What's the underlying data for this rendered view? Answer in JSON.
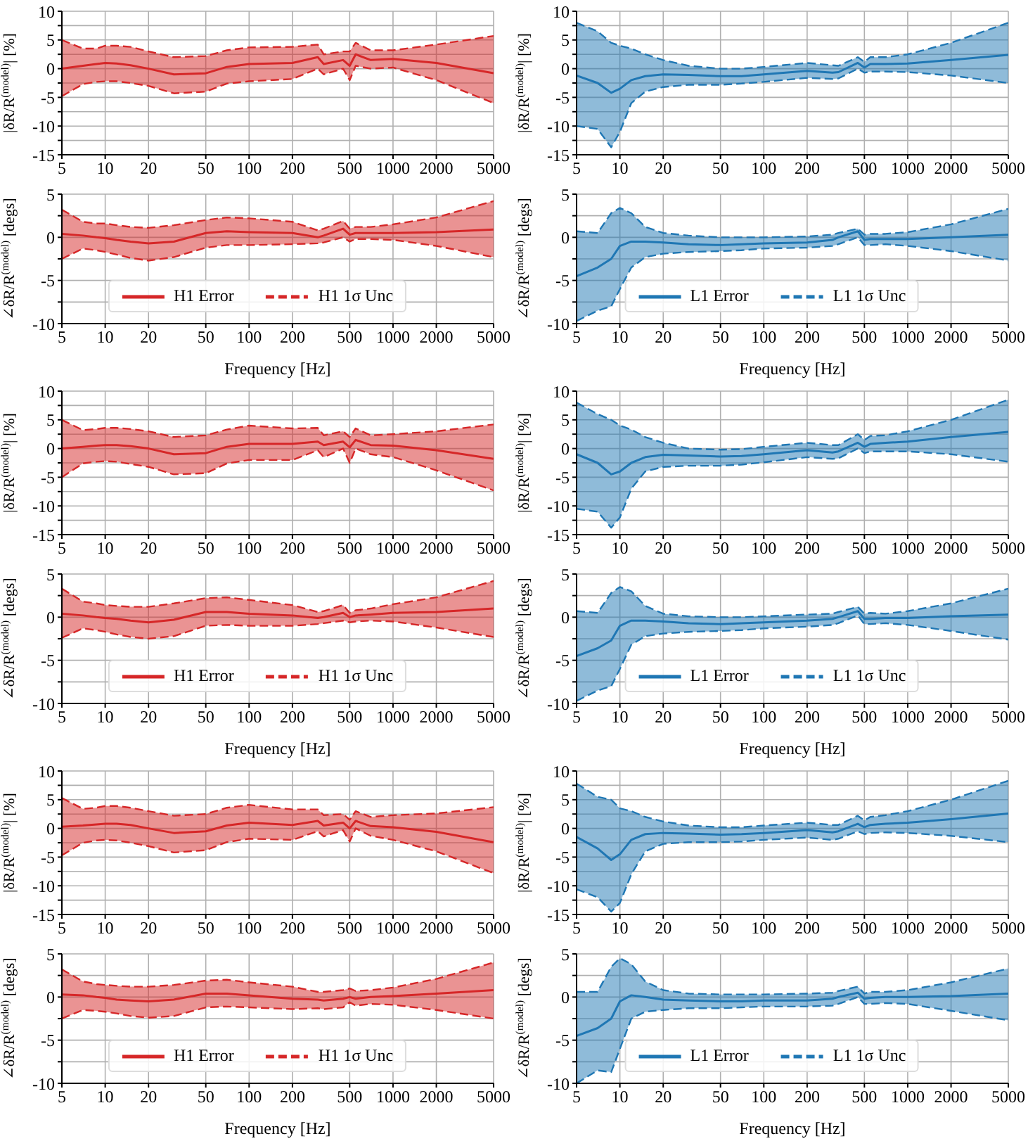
{
  "chart_data": [
    {
      "type": "line",
      "x": [
        5,
        7,
        8.7,
        10,
        12,
        15,
        20,
        30,
        50,
        70,
        100,
        200,
        300,
        330,
        450,
        500,
        550,
        700,
        1000,
        2000,
        5000
      ],
      "log": "x",
      "xlim": [
        5,
        5000
      ],
      "xticks": [
        5,
        10,
        20,
        50,
        100,
        200,
        500,
        1000,
        2000,
        5000
      ],
      "ylim": [
        -15,
        10
      ],
      "yticks": [
        -15,
        {
          "value": -12.5,
          "label": null
        },
        -10,
        {
          "value": -7.5,
          "label": null
        },
        -5,
        {
          "value": -2.5,
          "label": null
        },
        0,
        {
          "value": 2.5,
          "label": null
        },
        5,
        {
          "value": 7.5,
          "label": null
        },
        10
      ],
      "ylabel": "|δR/R$^{(model)}$| [%]",
      "grid": true,
      "series": [
        {
          "color": "#d62728",
          "values": [
            0,
            0.5,
            0.8,
            1,
            0.9,
            0.6,
            0,
            -1,
            -0.8,
            0.3,
            0.8,
            1,
            2,
            0.8,
            1.5,
            0.5,
            2.5,
            1.5,
            1.7,
            1,
            -0.8
          ],
          "upper": [
            5,
            3.5,
            3.5,
            4,
            4,
            3.8,
            3,
            2,
            2.2,
            3.2,
            3.7,
            3.8,
            4.2,
            2.5,
            3,
            3,
            4.5,
            3.2,
            3.2,
            4.2,
            5.7
          ],
          "lower": [
            -4.8,
            -2.7,
            -2.3,
            -2.2,
            -2.2,
            -2.5,
            -3,
            -4.3,
            -4,
            -2.6,
            -2.2,
            -1.8,
            0,
            -1,
            0,
            -2,
            0.5,
            0,
            0.2,
            -2,
            -6
          ]
        },
        {
          "color": "#d62728",
          "line_style": "dashed",
          "values": [
            5,
            3.5,
            3.5,
            4,
            4,
            3.8,
            3,
            2,
            2.2,
            3.2,
            3.7,
            3.8,
            4.2,
            2.5,
            3,
            3,
            4.5,
            3.2,
            3.2,
            4.2,
            5.7
          ]
        },
        {
          "color": "#d62728",
          "line_style": "dashed",
          "values": [
            -4.8,
            -2.7,
            -2.3,
            -2.2,
            -2.2,
            -2.5,
            -3,
            -4.3,
            -4,
            -2.6,
            -2.2,
            -1.8,
            0,
            -1,
            0,
            -2,
            0.5,
            0,
            0.2,
            -2,
            -6
          ]
        }
      ]
    },
    {
      "type": "line",
      "x": [
        5,
        7,
        8.7,
        10,
        12,
        15,
        20,
        30,
        50,
        70,
        100,
        200,
        300,
        330,
        450,
        500,
        550,
        700,
        1000,
        2000,
        5000
      ],
      "log": "x",
      "xlim": [
        5,
        5000
      ],
      "xticks": [
        5,
        10,
        20,
        50,
        100,
        200,
        500,
        1000,
        2000,
        5000
      ],
      "ylim": [
        -15,
        10
      ],
      "yticks": [
        -15,
        {
          "value": -12.5,
          "label": null
        },
        -10,
        {
          "value": -7.5,
          "label": null
        },
        -5,
        {
          "value": -2.5,
          "label": null
        },
        0,
        {
          "value": 2.5,
          "label": null
        },
        5,
        {
          "value": 7.5,
          "label": null
        },
        10
      ],
      "ylabel": "|δR/R$^{(model)}$| [%]",
      "grid": true,
      "series": [
        {
          "color": "#1f77b4",
          "values": [
            -1.2,
            -2.5,
            -4.2,
            -3.5,
            -2,
            -1.3,
            -1,
            -1.1,
            -1.3,
            -1.3,
            -1,
            -0.4,
            -0.7,
            -0.6,
            1,
            0.2,
            0.8,
            0.8,
            0.9,
            1.5,
            2.4
          ],
          "upper": [
            8,
            6.5,
            4.5,
            4,
            3.5,
            2.5,
            1.5,
            0.5,
            0,
            0,
            0.3,
            1,
            0.6,
            0.5,
            2,
            1.2,
            2,
            2,
            2.5,
            4.5,
            8
          ],
          "lower": [
            -10,
            -10.5,
            -13.7,
            -11,
            -6,
            -4,
            -3.2,
            -2.8,
            -2.8,
            -2.6,
            -2.3,
            -1.6,
            -1.8,
            -1.7,
            0,
            -0.7,
            -0.5,
            -0.5,
            -0.6,
            -1.2,
            -2.5
          ]
        },
        {
          "color": "#1f77b4",
          "line_style": "dashed",
          "values": [
            8,
            6.5,
            4.5,
            4,
            3.5,
            2.5,
            1.5,
            0.5,
            0,
            0,
            0.3,
            1,
            0.6,
            0.5,
            2,
            1.2,
            2,
            2,
            2.5,
            4.5,
            8
          ]
        },
        {
          "color": "#1f77b4",
          "line_style": "dashed",
          "values": [
            -10,
            -10.5,
            -13.7,
            -11,
            -6,
            -4,
            -3.2,
            -2.8,
            -2.8,
            -2.6,
            -2.3,
            -1.6,
            -1.8,
            -1.7,
            0,
            -0.7,
            -0.5,
            -0.5,
            -0.6,
            -1.2,
            -2.5
          ]
        }
      ]
    },
    {
      "type": "line",
      "x": [
        5,
        7,
        8.7,
        10,
        12,
        15,
        20,
        30,
        50,
        70,
        100,
        200,
        300,
        330,
        450,
        500,
        550,
        700,
        1000,
        2000,
        5000
      ],
      "log": "x",
      "xlim": [
        5,
        5000
      ],
      "xticks": [
        5,
        10,
        20,
        50,
        100,
        200,
        500,
        1000,
        2000,
        5000
      ],
      "ylim": [
        -10,
        5
      ],
      "yticks": [
        -10,
        {
          "value": -7.5,
          "label": null
        },
        -5,
        {
          "value": -2.5,
          "label": null
        },
        0,
        {
          "value": 2.5,
          "label": null
        },
        5
      ],
      "xlabel": "Frequency [Hz]",
      "ylabel": "∠δR/R$^{(model)}$ [degs]",
      "grid": true,
      "legend": "bottom",
      "series": [
        {
          "name": "H1 Error",
          "color": "#d62728",
          "values": [
            0.4,
            0.2,
            0,
            -0.1,
            -0.3,
            -0.5,
            -0.7,
            -0.5,
            0.5,
            0.7,
            0.6,
            0.5,
            0,
            0.2,
            1,
            0.3,
            0.5,
            0.5,
            0.5,
            0.6,
            0.9
          ],
          "upper": [
            3.2,
            1.8,
            1.6,
            1.6,
            1.4,
            1.2,
            1.1,
            1.4,
            2,
            2.3,
            2.2,
            1.8,
            0.8,
            1,
            1.9,
            1,
            1.2,
            1.2,
            1.5,
            2.3,
            4.2
          ],
          "lower": [
            -2.5,
            -1.3,
            -1.5,
            -1.7,
            -2,
            -2.4,
            -2.7,
            -2.3,
            -1.2,
            -0.9,
            -0.9,
            -0.8,
            -0.7,
            -0.6,
            0,
            -0.5,
            -0.2,
            -0.2,
            -0.3,
            -1,
            -2.3
          ]
        },
        {
          "name": "H1 1σ Unc",
          "color": "#d62728",
          "line_style": "dashed",
          "values": [
            3.2,
            1.8,
            1.6,
            1.6,
            1.4,
            1.2,
            1.1,
            1.4,
            2,
            2.3,
            2.2,
            1.8,
            0.8,
            1,
            1.9,
            1,
            1.2,
            1.2,
            1.5,
            2.3,
            4.2
          ]
        },
        {
          "color": "#d62728",
          "line_style": "dashed",
          "values": [
            -2.5,
            -1.3,
            -1.5,
            -1.7,
            -2,
            -2.4,
            -2.7,
            -2.3,
            -1.2,
            -0.9,
            -0.9,
            -0.8,
            -0.7,
            -0.6,
            0,
            -0.5,
            -0.2,
            -0.2,
            -0.3,
            -1,
            -2.3
          ]
        }
      ]
    },
    {
      "type": "line",
      "x": [
        5,
        7,
        8.7,
        10,
        12,
        15,
        20,
        30,
        50,
        70,
        100,
        200,
        300,
        330,
        450,
        500,
        550,
        700,
        1000,
        2000,
        5000
      ],
      "log": "x",
      "xlim": [
        5,
        5000
      ],
      "xticks": [
        5,
        10,
        20,
        50,
        100,
        200,
        500,
        1000,
        2000,
        5000
      ],
      "ylim": [
        -10,
        5
      ],
      "yticks": [
        -10,
        {
          "value": -7.5,
          "label": null
        },
        -5,
        {
          "value": -2.5,
          "label": null
        },
        0,
        {
          "value": 2.5,
          "label": null
        },
        5
      ],
      "xlabel": "Frequency [Hz]",
      "ylabel": "∠δR/R$^{(model)}$ [degs]",
      "grid": true,
      "legend": "bottom",
      "series": [
        {
          "name": "L1 Error",
          "color": "#1f77b4",
          "values": [
            -4.5,
            -3.5,
            -2.5,
            -1,
            -0.5,
            -0.5,
            -0.6,
            -0.8,
            -0.9,
            -0.8,
            -0.7,
            -0.6,
            -0.3,
            0,
            0.7,
            -0.3,
            -0.2,
            -0.2,
            -0.2,
            0,
            0.3
          ],
          "upper": [
            0.7,
            0.5,
            2.8,
            3.4,
            2.8,
            1.2,
            0.5,
            0.2,
            0,
            0,
            0,
            0.1,
            0.3,
            0.5,
            1,
            0.3,
            0.4,
            0.4,
            0.6,
            1.5,
            3.3
          ],
          "lower": [
            -9.7,
            -8.5,
            -8,
            -6,
            -3.5,
            -2.3,
            -1.9,
            -1.7,
            -1.6,
            -1.5,
            -1.3,
            -1.2,
            -1,
            -0.8,
            0,
            -0.9,
            -0.9,
            -0.8,
            -1,
            -1.6,
            -2.7
          ]
        },
        {
          "name": "L1 1σ Unc",
          "color": "#1f77b4",
          "line_style": "dashed",
          "values": [
            0.7,
            0.5,
            2.8,
            3.4,
            2.8,
            1.2,
            0.5,
            0.2,
            0,
            0,
            0,
            0.1,
            0.3,
            0.5,
            1,
            0.3,
            0.4,
            0.4,
            0.6,
            1.5,
            3.3
          ]
        },
        {
          "color": "#1f77b4",
          "line_style": "dashed",
          "values": [
            -9.7,
            -8.5,
            -8,
            -6,
            -3.5,
            -2.3,
            -1.9,
            -1.7,
            -1.6,
            -1.5,
            -1.3,
            -1.2,
            -1,
            -0.8,
            0,
            -0.9,
            -0.9,
            -0.8,
            -1,
            -1.6,
            -2.7
          ]
        }
      ]
    },
    {
      "type": "line",
      "x": [
        5,
        7,
        8.7,
        10,
        12,
        15,
        20,
        30,
        50,
        70,
        100,
        200,
        300,
        330,
        450,
        500,
        550,
        700,
        1000,
        2000,
        5000
      ],
      "log": "x",
      "xlim": [
        5,
        5000
      ],
      "xticks": [
        5,
        10,
        20,
        50,
        100,
        200,
        500,
        1000,
        2000,
        5000
      ],
      "ylim": [
        -15,
        10
      ],
      "yticks": [
        -15,
        {
          "value": -12.5,
          "label": null
        },
        -10,
        {
          "value": -7.5,
          "label": null
        },
        -5,
        {
          "value": -2.5,
          "label": null
        },
        0,
        {
          "value": 2.5,
          "label": null
        },
        5,
        {
          "value": 7.5,
          "label": null
        },
        10
      ],
      "ylabel": "|δR/R$^{(model)}$| [%]",
      "grid": true,
      "series": [
        {
          "color": "#d62728",
          "values": [
            0,
            0.3,
            0.5,
            0.6,
            0.6,
            0.4,
            0,
            -1,
            -0.8,
            0.3,
            0.8,
            0.8,
            1.2,
            0.6,
            1.2,
            0.2,
            1.5,
            0.6,
            0.5,
            -0.3,
            -1.8
          ],
          "upper": [
            5,
            3.2,
            3.4,
            3.6,
            3.6,
            3.4,
            3,
            2,
            2.3,
            3.3,
            4,
            3.5,
            3.6,
            2.3,
            3,
            2,
            3.5,
            2.3,
            2.5,
            3,
            4.2
          ],
          "lower": [
            -5,
            -2.6,
            -2.3,
            -2.2,
            -2.3,
            -2.7,
            -3.2,
            -4.5,
            -4.3,
            -2.6,
            -2,
            -2,
            -0.3,
            -1.5,
            0,
            -2.5,
            0,
            -1,
            -1.5,
            -3.8,
            -7.3
          ]
        },
        {
          "color": "#d62728",
          "line_style": "dashed",
          "values": [
            5,
            3.2,
            3.4,
            3.6,
            3.6,
            3.4,
            3,
            2,
            2.3,
            3.3,
            4,
            3.5,
            3.6,
            2.3,
            3,
            2,
            3.5,
            2.3,
            2.5,
            3,
            4.2
          ]
        },
        {
          "color": "#d62728",
          "line_style": "dashed",
          "values": [
            -5,
            -2.6,
            -2.3,
            -2.2,
            -2.3,
            -2.7,
            -3.2,
            -4.5,
            -4.3,
            -2.6,
            -2,
            -2,
            -0.3,
            -1.5,
            0,
            -2.5,
            0,
            -1,
            -1.5,
            -3.8,
            -7.3
          ]
        }
      ]
    },
    {
      "type": "line",
      "x": [
        5,
        7,
        8.7,
        10,
        12,
        15,
        20,
        30,
        50,
        70,
        100,
        200,
        300,
        330,
        450,
        500,
        550,
        700,
        1000,
        2000,
        5000
      ],
      "log": "x",
      "xlim": [
        5,
        5000
      ],
      "xticks": [
        5,
        10,
        20,
        50,
        100,
        200,
        500,
        1000,
        2000,
        5000
      ],
      "ylim": [
        -15,
        10
      ],
      "yticks": [
        -15,
        {
          "value": -12.5,
          "label": null
        },
        -10,
        {
          "value": -7.5,
          "label": null
        },
        -5,
        {
          "value": -2.5,
          "label": null
        },
        0,
        {
          "value": 2.5,
          "label": null
        },
        5,
        {
          "value": 7.5,
          "label": null
        },
        10
      ],
      "ylabel": "|δR/R$^{(model)}$| [%]",
      "grid": true,
      "series": [
        {
          "color": "#1f77b4",
          "values": [
            -1,
            -2.5,
            -4.5,
            -4,
            -2.5,
            -1.5,
            -1.1,
            -1.2,
            -1.4,
            -1.3,
            -1,
            -0.3,
            -0.7,
            -0.5,
            1,
            0.3,
            0.8,
            1,
            1.2,
            2,
            2.9
          ],
          "upper": [
            8,
            6,
            5,
            4,
            3.3,
            2,
            1,
            0,
            -0.2,
            -0.1,
            0.3,
            1,
            0.6,
            0.6,
            2.5,
            1.5,
            2.2,
            2.3,
            3,
            5,
            8.5
          ],
          "lower": [
            -10.5,
            -11,
            -13.8,
            -12,
            -7,
            -4,
            -3.2,
            -3,
            -3,
            -2.8,
            -2.4,
            -1.5,
            -1.8,
            -1.7,
            0,
            -0.8,
            -0.5,
            -0.5,
            -0.5,
            -1,
            -2.3
          ]
        },
        {
          "color": "#1f77b4",
          "line_style": "dashed",
          "values": [
            8,
            6,
            5,
            4,
            3.3,
            2,
            1,
            0,
            -0.2,
            -0.1,
            0.3,
            1,
            0.6,
            0.6,
            2.5,
            1.5,
            2.2,
            2.3,
            3,
            5,
            8.5
          ]
        },
        {
          "color": "#1f77b4",
          "line_style": "dashed",
          "values": [
            -10.5,
            -11,
            -13.8,
            -12,
            -7,
            -4,
            -3.2,
            -3,
            -3,
            -2.8,
            -2.4,
            -1.5,
            -1.8,
            -1.7,
            0,
            -0.8,
            -0.5,
            -0.5,
            -0.5,
            -1,
            -2.3
          ]
        }
      ]
    },
    {
      "type": "line",
      "x": [
        5,
        7,
        8.7,
        10,
        12,
        15,
        20,
        30,
        50,
        70,
        100,
        200,
        300,
        330,
        450,
        500,
        550,
        700,
        1000,
        2000,
        5000
      ],
      "log": "x",
      "xlim": [
        5,
        5000
      ],
      "xticks": [
        5,
        10,
        20,
        50,
        100,
        200,
        500,
        1000,
        2000,
        5000
      ],
      "ylim": [
        -10,
        5
      ],
      "yticks": [
        -10,
        {
          "value": -7.5,
          "label": null
        },
        -5,
        {
          "value": -2.5,
          "label": null
        },
        0,
        {
          "value": 2.5,
          "label": null
        },
        5
      ],
      "xlabel": "Frequency [Hz]",
      "ylabel": "∠δR/R$^{(model)}$ [degs]",
      "grid": true,
      "legend": "bottom",
      "series": [
        {
          "name": "H1 Error",
          "color": "#d62728",
          "values": [
            0.4,
            0.2,
            0,
            -0.1,
            -0.2,
            -0.4,
            -0.6,
            -0.3,
            0.6,
            0.6,
            0.4,
            0.2,
            -0.1,
            0,
            0.5,
            0,
            0.2,
            0.3,
            0.5,
            0.6,
            1
          ],
          "upper": [
            3.3,
            1.8,
            1.6,
            1.4,
            1.3,
            1.2,
            1.2,
            1.6,
            2.2,
            2.3,
            2,
            1.4,
            0.6,
            0.7,
            1.4,
            0.5,
            0.8,
            1,
            1.5,
            2.3,
            4.2
          ],
          "lower": [
            -2.4,
            -1.3,
            -1.5,
            -1.7,
            -2,
            -2.3,
            -2.5,
            -2.2,
            -1,
            -0.9,
            -1,
            -1,
            -0.8,
            -0.7,
            -0.4,
            -0.6,
            -0.5,
            -0.4,
            -0.5,
            -1.2,
            -2.3
          ]
        },
        {
          "name": "H1 1σ Unc",
          "color": "#d62728",
          "line_style": "dashed",
          "values": [
            3.3,
            1.8,
            1.6,
            1.4,
            1.3,
            1.2,
            1.2,
            1.6,
            2.2,
            2.3,
            2,
            1.4,
            0.6,
            0.7,
            1.4,
            0.5,
            0.8,
            1,
            1.5,
            2.3,
            4.2
          ]
        },
        {
          "color": "#d62728",
          "line_style": "dashed",
          "values": [
            -2.4,
            -1.3,
            -1.5,
            -1.7,
            -2,
            -2.3,
            -2.5,
            -2.2,
            -1,
            -0.9,
            -1,
            -1,
            -0.8,
            -0.7,
            -0.4,
            -0.6,
            -0.5,
            -0.4,
            -0.5,
            -1.2,
            -2.3
          ]
        }
      ]
    },
    {
      "type": "line",
      "x": [
        5,
        7,
        8.7,
        10,
        12,
        15,
        20,
        30,
        50,
        70,
        100,
        200,
        300,
        330,
        450,
        500,
        550,
        700,
        1000,
        2000,
        5000
      ],
      "log": "x",
      "xlim": [
        5,
        5000
      ],
      "xticks": [
        5,
        10,
        20,
        50,
        100,
        200,
        500,
        1000,
        2000,
        5000
      ],
      "ylim": [
        -10,
        5
      ],
      "yticks": [
        -10,
        {
          "value": -7.5,
          "label": null
        },
        -5,
        {
          "value": -2.5,
          "label": null
        },
        0,
        {
          "value": 2.5,
          "label": null
        },
        5
      ],
      "xlabel": "Frequency [Hz]",
      "ylabel": "∠δR/R$^{(model)}$ [degs]",
      "grid": true,
      "legend": "bottom",
      "series": [
        {
          "name": "L1 Error",
          "color": "#1f77b4",
          "values": [
            -4.5,
            -3.6,
            -2.7,
            -1,
            -0.4,
            -0.4,
            -0.5,
            -0.7,
            -0.8,
            -0.7,
            -0.6,
            -0.4,
            -0.2,
            0,
            0.7,
            -0.2,
            -0.2,
            -0.1,
            -0.1,
            0.1,
            0.3
          ],
          "upper": [
            0.7,
            0.5,
            2.8,
            3.5,
            3,
            1.3,
            0.4,
            0.1,
            0,
            0,
            0.1,
            0.3,
            0.4,
            0.6,
            1.2,
            0.4,
            0.5,
            0.4,
            0.7,
            1.6,
            3.3
          ],
          "lower": [
            -9.7,
            -8.5,
            -8,
            -6,
            -3.2,
            -2.2,
            -1.9,
            -1.7,
            -1.6,
            -1.5,
            -1.3,
            -1.1,
            -0.9,
            -0.7,
            0.2,
            -0.8,
            -0.8,
            -0.7,
            -0.9,
            -1.6,
            -2.6
          ]
        },
        {
          "name": "L1 1σ Unc",
          "color": "#1f77b4",
          "line_style": "dashed",
          "values": [
            0.7,
            0.5,
            2.8,
            3.5,
            3,
            1.3,
            0.4,
            0.1,
            0,
            0,
            0.1,
            0.3,
            0.4,
            0.6,
            1.2,
            0.4,
            0.5,
            0.4,
            0.7,
            1.6,
            3.3
          ]
        },
        {
          "color": "#1f77b4",
          "line_style": "dashed",
          "values": [
            -9.7,
            -8.5,
            -8,
            -6,
            -3.2,
            -2.2,
            -1.9,
            -1.7,
            -1.6,
            -1.5,
            -1.3,
            -1.1,
            -0.9,
            -0.7,
            0.2,
            -0.8,
            -0.8,
            -0.7,
            -0.9,
            -1.6,
            -2.6
          ]
        }
      ]
    },
    {
      "type": "line",
      "x": [
        5,
        7,
        8.7,
        10,
        12,
        15,
        20,
        30,
        50,
        70,
        100,
        200,
        300,
        330,
        450,
        500,
        550,
        700,
        1000,
        2000,
        5000
      ],
      "log": "x",
      "xlim": [
        5,
        5000
      ],
      "xticks": [
        5,
        10,
        20,
        50,
        100,
        200,
        500,
        1000,
        2000,
        5000
      ],
      "ylim": [
        -15,
        10
      ],
      "yticks": [
        -15,
        {
          "value": -12.5,
          "label": null
        },
        -10,
        {
          "value": -7.5,
          "label": null
        },
        -5,
        {
          "value": -2.5,
          "label": null
        },
        0,
        {
          "value": 2.5,
          "label": null
        },
        5,
        {
          "value": 7.5,
          "label": null
        },
        10
      ],
      "ylabel": "|δR/R$^{(model)}$| [%]",
      "grid": true,
      "series": [
        {
          "color": "#d62728",
          "values": [
            0.3,
            0.5,
            0.7,
            0.8,
            0.8,
            0.6,
            0,
            -0.8,
            -0.5,
            0.5,
            1,
            0.6,
            1.3,
            0.5,
            1,
            0,
            1.3,
            0.4,
            0.2,
            -0.6,
            -2.4
          ],
          "upper": [
            5.3,
            3.4,
            3.6,
            3.9,
            3.9,
            3.6,
            3,
            2.2,
            2.5,
            3.6,
            4.1,
            3.3,
            3.3,
            2.3,
            2.5,
            1.5,
            3,
            2,
            2.3,
            2.6,
            3.7
          ],
          "lower": [
            -4.7,
            -2.5,
            -2.1,
            -2,
            -2.1,
            -2.5,
            -3.1,
            -4.2,
            -3.8,
            -2.4,
            -1.8,
            -2,
            -0.5,
            -1.4,
            -0.3,
            -2.3,
            0,
            -1.3,
            -2,
            -4,
            -7.8
          ]
        },
        {
          "color": "#d62728",
          "line_style": "dashed",
          "values": [
            5.3,
            3.4,
            3.6,
            3.9,
            3.9,
            3.6,
            3,
            2.2,
            2.5,
            3.6,
            4.1,
            3.3,
            3.3,
            2.3,
            2.5,
            1.5,
            3,
            2,
            2.3,
            2.6,
            3.7
          ]
        },
        {
          "color": "#d62728",
          "line_style": "dashed",
          "values": [
            -4.7,
            -2.5,
            -2.1,
            -2,
            -2.1,
            -2.5,
            -3.1,
            -4.2,
            -3.8,
            -2.4,
            -1.8,
            -2,
            -0.5,
            -1.4,
            -0.3,
            -2.3,
            0,
            -1.3,
            -2,
            -4,
            -7.8
          ]
        }
      ]
    },
    {
      "type": "line",
      "x": [
        5,
        7,
        8.7,
        10,
        12,
        15,
        20,
        30,
        50,
        70,
        100,
        200,
        300,
        330,
        450,
        500,
        550,
        700,
        1000,
        2000,
        5000
      ],
      "log": "x",
      "xlim": [
        5,
        5000
      ],
      "xticks": [
        5,
        10,
        20,
        50,
        100,
        200,
        500,
        1000,
        2000,
        5000
      ],
      "ylim": [
        -15,
        10
      ],
      "yticks": [
        -15,
        {
          "value": -12.5,
          "label": null
        },
        -10,
        {
          "value": -7.5,
          "label": null
        },
        -5,
        {
          "value": -2.5,
          "label": null
        },
        0,
        {
          "value": 2.5,
          "label": null
        },
        5,
        {
          "value": 7.5,
          "label": null
        },
        10
      ],
      "ylabel": "|δR/R$^{(model)}$| [%]",
      "grid": true,
      "series": [
        {
          "color": "#1f77b4",
          "values": [
            -1.5,
            -3.5,
            -5.5,
            -4.5,
            -2,
            -1,
            -0.8,
            -0.9,
            -1.1,
            -1,
            -0.8,
            -0.3,
            -0.7,
            -0.5,
            0.8,
            0.2,
            0.6,
            0.8,
            1,
            1.6,
            2.6
          ],
          "upper": [
            7.8,
            5.5,
            5,
            3.5,
            3,
            2,
            1.2,
            0.5,
            0.2,
            0.2,
            0.5,
            1,
            0.6,
            0.6,
            2.2,
            1.4,
            2,
            2.3,
            3,
            5,
            8.3
          ],
          "lower": [
            -10.6,
            -12,
            -14.5,
            -13,
            -8,
            -4,
            -2.7,
            -2.4,
            -2.4,
            -2.3,
            -2,
            -1.6,
            -2,
            -1.8,
            -0.5,
            -1,
            -0.8,
            -0.7,
            -0.8,
            -1.3,
            -2.4
          ]
        },
        {
          "color": "#1f77b4",
          "line_style": "dashed",
          "values": [
            7.8,
            5.5,
            5,
            3.5,
            3,
            2,
            1.2,
            0.5,
            0.2,
            0.2,
            0.5,
            1,
            0.6,
            0.6,
            2.2,
            1.4,
            2,
            2.3,
            3,
            5,
            8.3
          ]
        },
        {
          "color": "#1f77b4",
          "line_style": "dashed",
          "values": [
            -10.6,
            -12,
            -14.5,
            -13,
            -8,
            -4,
            -2.7,
            -2.4,
            -2.4,
            -2.3,
            -2,
            -1.6,
            -2,
            -1.8,
            -0.5,
            -1,
            -0.8,
            -0.7,
            -0.8,
            -1.3,
            -2.4
          ]
        }
      ]
    },
    {
      "type": "line",
      "x": [
        5,
        7,
        8.7,
        10,
        12,
        15,
        20,
        30,
        50,
        70,
        100,
        200,
        300,
        330,
        450,
        500,
        550,
        700,
        1000,
        2000,
        5000
      ],
      "log": "x",
      "xlim": [
        5,
        5000
      ],
      "xticks": [
        5,
        10,
        20,
        50,
        100,
        200,
        500,
        1000,
        2000,
        5000
      ],
      "ylim": [
        -10,
        5
      ],
      "yticks": [
        -10,
        {
          "value": -7.5,
          "label": null
        },
        -5,
        {
          "value": -2.5,
          "label": null
        },
        0,
        {
          "value": 2.5,
          "label": null
        },
        5
      ],
      "xlabel": "Frequency [Hz]",
      "ylabel": "∠δR/R$^{(model)}$ [degs]",
      "grid": true,
      "legend": "bottom",
      "series": [
        {
          "name": "H1 Error",
          "color": "#d62728",
          "values": [
            0.3,
            0.2,
            0,
            -0.1,
            -0.3,
            -0.4,
            -0.5,
            -0.3,
            0.4,
            0.4,
            0.2,
            -0.2,
            -0.3,
            -0.4,
            -0.2,
            0,
            -0.2,
            0,
            0.1,
            0.4,
            0.8
          ],
          "upper": [
            3.2,
            1.8,
            1.5,
            1.4,
            1.3,
            1.2,
            1.2,
            1.4,
            1.9,
            2,
            1.7,
            1.2,
            0.6,
            0.6,
            0.8,
            1,
            0.7,
            0.8,
            1.1,
            2.1,
            4
          ],
          "lower": [
            -2.5,
            -1.5,
            -1.6,
            -1.7,
            -1.9,
            -2.2,
            -2.4,
            -2.2,
            -1.2,
            -1.1,
            -1.2,
            -1.4,
            -1.3,
            -1.4,
            -1.2,
            -0.6,
            -1,
            -0.8,
            -0.9,
            -1.5,
            -2.5
          ]
        },
        {
          "name": "H1 1σ Unc",
          "color": "#d62728",
          "line_style": "dashed",
          "values": [
            3.2,
            1.8,
            1.5,
            1.4,
            1.3,
            1.2,
            1.2,
            1.4,
            1.9,
            2,
            1.7,
            1.2,
            0.6,
            0.6,
            0.8,
            1,
            0.7,
            0.8,
            1.1,
            2.1,
            4
          ]
        },
        {
          "color": "#d62728",
          "line_style": "dashed",
          "values": [
            -2.5,
            -1.5,
            -1.6,
            -1.7,
            -1.9,
            -2.2,
            -2.4,
            -2.2,
            -1.2,
            -1.1,
            -1.2,
            -1.4,
            -1.3,
            -1.4,
            -1.2,
            -0.6,
            -1,
            -0.8,
            -0.9,
            -1.5,
            -2.5
          ]
        }
      ]
    },
    {
      "type": "line",
      "x": [
        5,
        7,
        8.7,
        10,
        12,
        15,
        20,
        30,
        50,
        70,
        100,
        200,
        300,
        330,
        450,
        500,
        550,
        700,
        1000,
        2000,
        5000
      ],
      "log": "x",
      "xlim": [
        5,
        5000
      ],
      "xticks": [
        5,
        10,
        20,
        50,
        100,
        200,
        500,
        1000,
        2000,
        5000
      ],
      "ylim": [
        -10,
        5
      ],
      "yticks": [
        -10,
        {
          "value": -7.5,
          "label": null
        },
        -5,
        {
          "value": -2.5,
          "label": null
        },
        0,
        {
          "value": 2.5,
          "label": null
        },
        5
      ],
      "xlabel": "Frequency [Hz]",
      "ylabel": "∠δR/R$^{(model)}$ [degs]",
      "grid": true,
      "legend": "bottom",
      "series": [
        {
          "name": "L1 Error",
          "color": "#1f77b4",
          "values": [
            -4.5,
            -3.6,
            -2.5,
            -0.5,
            0.2,
            0,
            -0.3,
            -0.4,
            -0.5,
            -0.5,
            -0.4,
            -0.4,
            -0.2,
            0,
            0.5,
            -0.2,
            -0.1,
            0,
            0,
            0.1,
            0.4
          ],
          "upper": [
            0.6,
            0.6,
            3.5,
            4.5,
            3.8,
            1.8,
            0.8,
            0.4,
            0.3,
            0.3,
            0.3,
            0.4,
            0.5,
            0.7,
            1.2,
            0.4,
            0.6,
            0.6,
            0.8,
            1.7,
            3.3
          ],
          "lower": [
            -10,
            -8.5,
            -8.7,
            -6,
            -2.5,
            -1.7,
            -1.5,
            -1.3,
            -1.3,
            -1.2,
            -1.1,
            -1.1,
            -1,
            -0.8,
            0,
            -0.8,
            -0.8,
            -0.7,
            -0.8,
            -1.6,
            -2.7
          ]
        },
        {
          "name": "L1 1σ Unc",
          "color": "#1f77b4",
          "line_style": "dashed",
          "values": [
            0.6,
            0.6,
            3.5,
            4.5,
            3.8,
            1.8,
            0.8,
            0.4,
            0.3,
            0.3,
            0.3,
            0.4,
            0.5,
            0.7,
            1.2,
            0.4,
            0.6,
            0.6,
            0.8,
            1.7,
            3.3
          ]
        },
        {
          "color": "#1f77b4",
          "line_style": "dashed",
          "values": [
            -10,
            -8.5,
            -8.7,
            -6,
            -2.5,
            -1.7,
            -1.5,
            -1.3,
            -1.3,
            -1.2,
            -1.1,
            -1.1,
            -1,
            -0.8,
            0,
            -0.8,
            -0.8,
            -0.7,
            -0.8,
            -1.6,
            -2.7
          ]
        }
      ]
    }
  ]
}
